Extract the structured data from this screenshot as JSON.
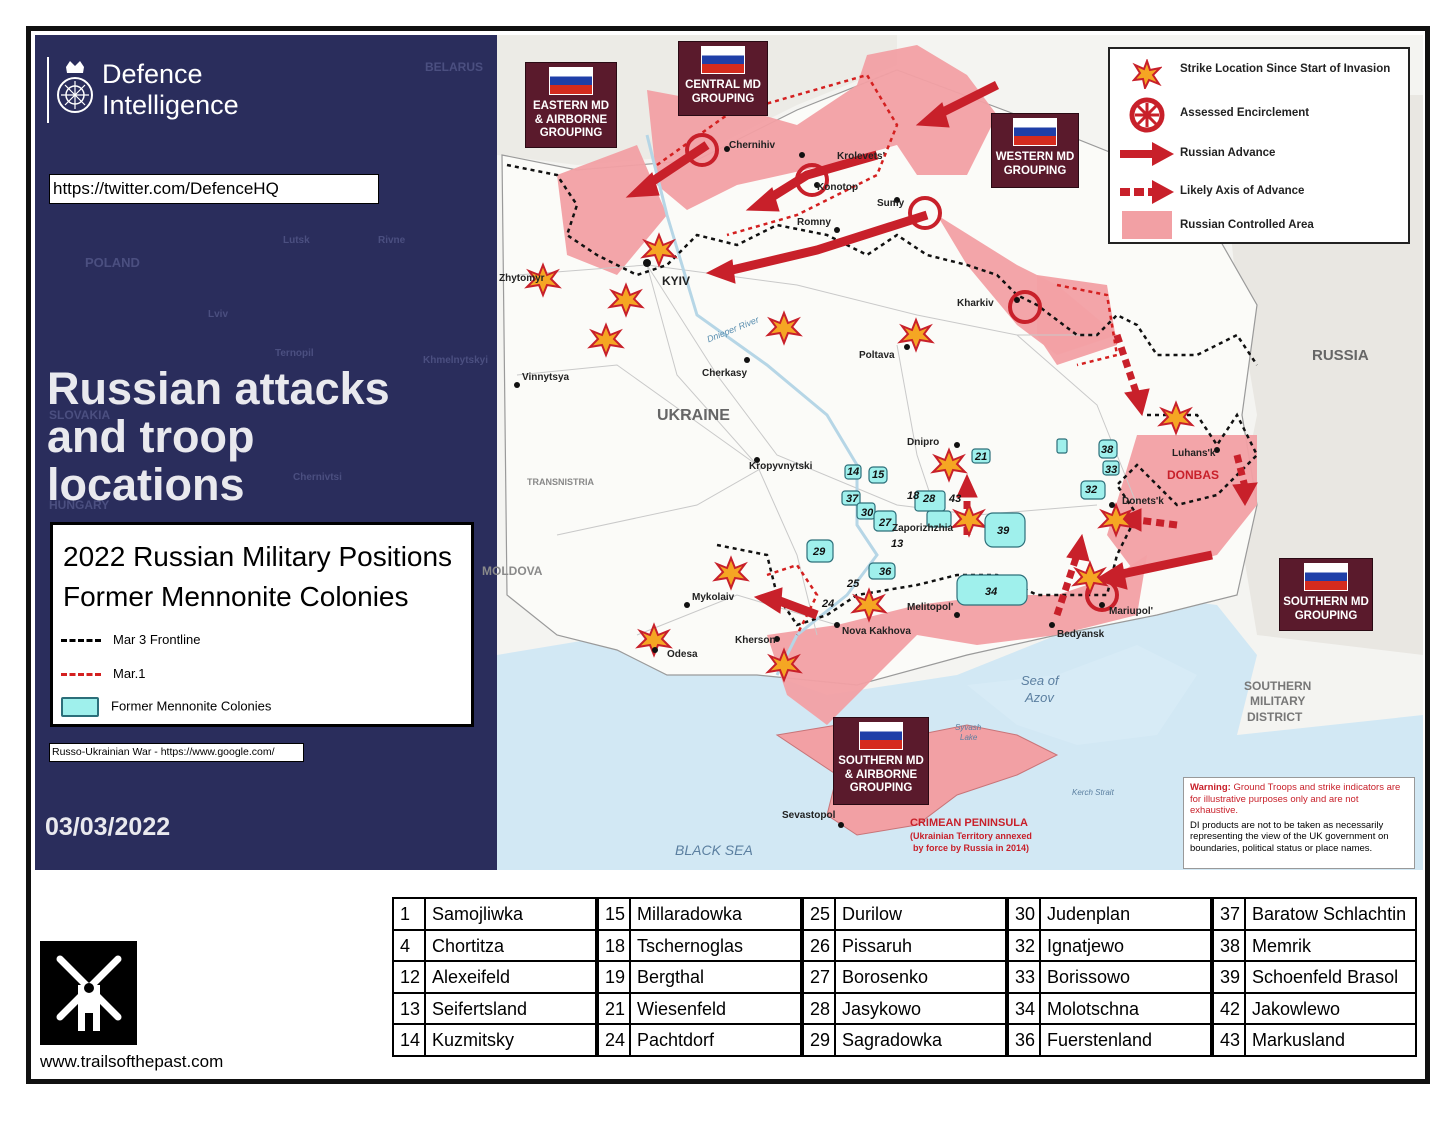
{
  "header": {
    "org_line1": "Defence",
    "org_line2": "Intelligence",
    "twitter_url": "https://twitter.com/DefenceHQ",
    "title_line1": "Russian attacks",
    "title_line2": "and troop",
    "title_line3": "locations",
    "date": "03/03/2022"
  },
  "overlay_legend": {
    "title_line1": "2022 Russian Military Positions",
    "title_line2": "Former Mennonite Colonies",
    "items": [
      "Mar 3 Frontline",
      "Mar.1",
      "Former Mennonite Colonies"
    ]
  },
  "source_note": "Russo-Ukrainian War - https://www.google.com/",
  "map_key": {
    "items": [
      "Strike Location Since Start of Invasion",
      "Assessed Encirclement",
      "Russian Advance",
      "Likely Axis of Advance",
      "Russian Controlled Area"
    ]
  },
  "groupings": {
    "eastern": [
      "EASTERN MD",
      "& AIRBORNE",
      "GROUPING"
    ],
    "central": [
      "CENTRAL MD",
      "GROUPING"
    ],
    "western": [
      "WESTERN MD",
      "GROUPING"
    ],
    "southern_east": [
      "SOUTHERN MD",
      "GROUPING"
    ],
    "southern_crimea": [
      "SOUTHERN MD",
      "& AIRBORNE",
      "GROUPING"
    ]
  },
  "map_labels": {
    "countries": [
      "BELARUS",
      "POLAND",
      "RUSSIA",
      "UKRAINE",
      "MOLDOVA",
      "SLOVAKIA",
      "HUNGARY",
      "TRANSNISTRIA"
    ],
    "cities": [
      "Chernihiv",
      "Krolevets'",
      "Konotop",
      "Sumy",
      "Romny",
      "KYIV",
      "Zhytomyr",
      "Lutsk",
      "Rivne",
      "Lviv",
      "Ternopil",
      "Khmelnytskyi",
      "Chernivtsi",
      "Vinnytsya",
      "Cherkasy",
      "Poltava",
      "Kharkiv",
      "Dnipro",
      "Kropyvnytski",
      "Luhans'k",
      "Donets'k",
      "Zaporizhzhia",
      "Mykolaiv",
      "Kherson",
      "Odesa",
      "Nova Kakhova",
      "Melitopol'",
      "Mariupol'",
      "Bedyansk",
      "Sevastopol"
    ],
    "regions": [
      "DONBAS",
      "Dnieper River",
      "Sea of",
      "Azov",
      "Syvash",
      "Lake",
      "Kerch Strait",
      "BLACK SEA",
      "SOUTHERN",
      "MILITARY",
      "DISTRICT",
      "CRIMEAN PENINSULA",
      "(Ukrainian Territory annexed",
      "by force by Russia in 2014)"
    ],
    "colony_markers": [
      "14",
      "15",
      "37",
      "30",
      "27",
      "18",
      "28",
      "43",
      "13",
      "29",
      "36",
      "25",
      "24",
      "21",
      "39",
      "34",
      "38",
      "33",
      "32"
    ]
  },
  "warning": {
    "prefix": "Warning:",
    "text": "Ground Troops and strike indicators are for illustrative purposes only and are not exhaustive.",
    "disclaimer": "DI products are not to be taken as necessarily representing the view of the UK government on boundaries, political status or place names."
  },
  "footer": {
    "website": "www.trailsofthepast.com"
  },
  "colonies": [
    [
      {
        "num": "1",
        "name": "Samojliwka"
      },
      {
        "num": "4",
        "name": "Chortitza"
      },
      {
        "num": "12",
        "name": "Alexeifeld"
      },
      {
        "num": "13",
        "name": "Seifertsland"
      },
      {
        "num": "14",
        "name": "Kuzmitsky"
      }
    ],
    [
      {
        "num": "15",
        "name": "Millaradowka"
      },
      {
        "num": "18",
        "name": "Tschernoglas"
      },
      {
        "num": "19",
        "name": "Bergthal"
      },
      {
        "num": "21",
        "name": "Wiesenfeld"
      },
      {
        "num": "24",
        "name": "Pachtdorf"
      }
    ],
    [
      {
        "num": "25",
        "name": "Durilow"
      },
      {
        "num": "26",
        "name": "Pissaruh"
      },
      {
        "num": "27",
        "name": "Borosenko"
      },
      {
        "num": "28",
        "name": "Jasykowo"
      },
      {
        "num": "29",
        "name": "Sagradowka"
      }
    ],
    [
      {
        "num": "30",
        "name": "Judenplan"
      },
      {
        "num": "32",
        "name": "Ignatjewo"
      },
      {
        "num": "33",
        "name": "Borissowo"
      },
      {
        "num": "34",
        "name": "Molotschna"
      },
      {
        "num": "36",
        "name": "Fuerstenland"
      }
    ],
    [
      {
        "num": "37",
        "name": "Baratow Schlachtin"
      },
      {
        "num": "38",
        "name": "Memrik"
      },
      {
        "num": "39",
        "name": "Schoenfeld Brasol"
      },
      {
        "num": "42",
        "name": "Jakowlewo"
      },
      {
        "num": "43",
        "name": "Markusland"
      }
    ]
  ],
  "colors": {
    "panel": "#2a2d5c",
    "controlled": "#f2a0a4",
    "advance": "#c8202a",
    "colony_fill": "#9ff0ec",
    "sea": "#cfe7f3",
    "land": "#f6f6f3"
  }
}
